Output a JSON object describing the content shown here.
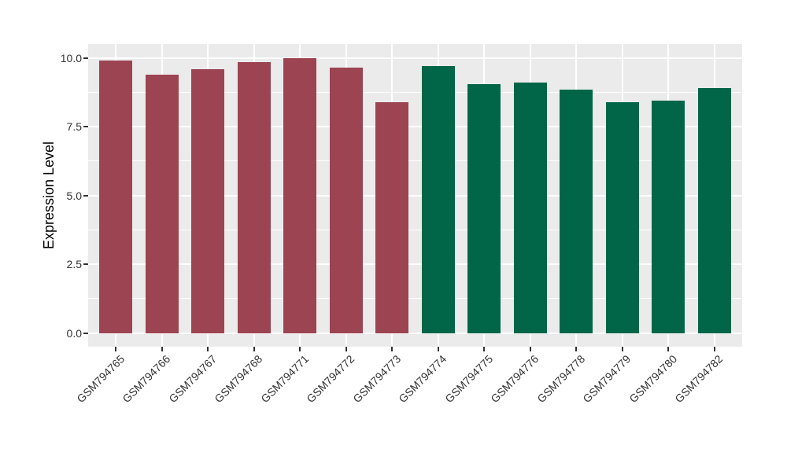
{
  "figure": {
    "background_color": "#ffffff",
    "panel_background_color": "#ebebeb",
    "gridline_color": "#ffffff",
    "axis_text_color": "#333333",
    "axis_title_color": "#000000",
    "left_group_color": "#9c4452",
    "right_group_color": "#016647"
  },
  "chart_data": {
    "type": "bar",
    "title": "",
    "xlabel": "",
    "ylabel": "Expression Level",
    "legend_position": "none",
    "grid": true,
    "ylim": [
      -0.5,
      10.5
    ],
    "ytick_values": [
      0,
      2.5,
      5,
      7.5,
      10
    ],
    "ytick_labels": [
      "0.0",
      "2.5",
      "5.0",
      "7.5",
      "10.0"
    ],
    "minor_gridline_values": [
      1.25,
      3.75,
      6.25,
      8.75
    ],
    "categories": [
      "GSM794765",
      "GSM794766",
      "GSM794767",
      "GSM794768",
      "GSM794771",
      "GSM794772",
      "GSM794773",
      "GSM794774",
      "GSM794775",
      "GSM794776",
      "GSM794778",
      "GSM794779",
      "GSM794780",
      "GSM794782"
    ],
    "values": [
      9.9,
      9.4,
      9.6,
      9.85,
      10.0,
      9.65,
      8.4,
      9.7,
      9.05,
      9.1,
      8.85,
      8.4,
      8.45,
      8.9
    ],
    "bar_colors": [
      "#9c4452",
      "#9c4452",
      "#9c4452",
      "#9c4452",
      "#9c4452",
      "#9c4452",
      "#9c4452",
      "#016647",
      "#016647",
      "#016647",
      "#016647",
      "#016647",
      "#016647",
      "#016647"
    ]
  }
}
